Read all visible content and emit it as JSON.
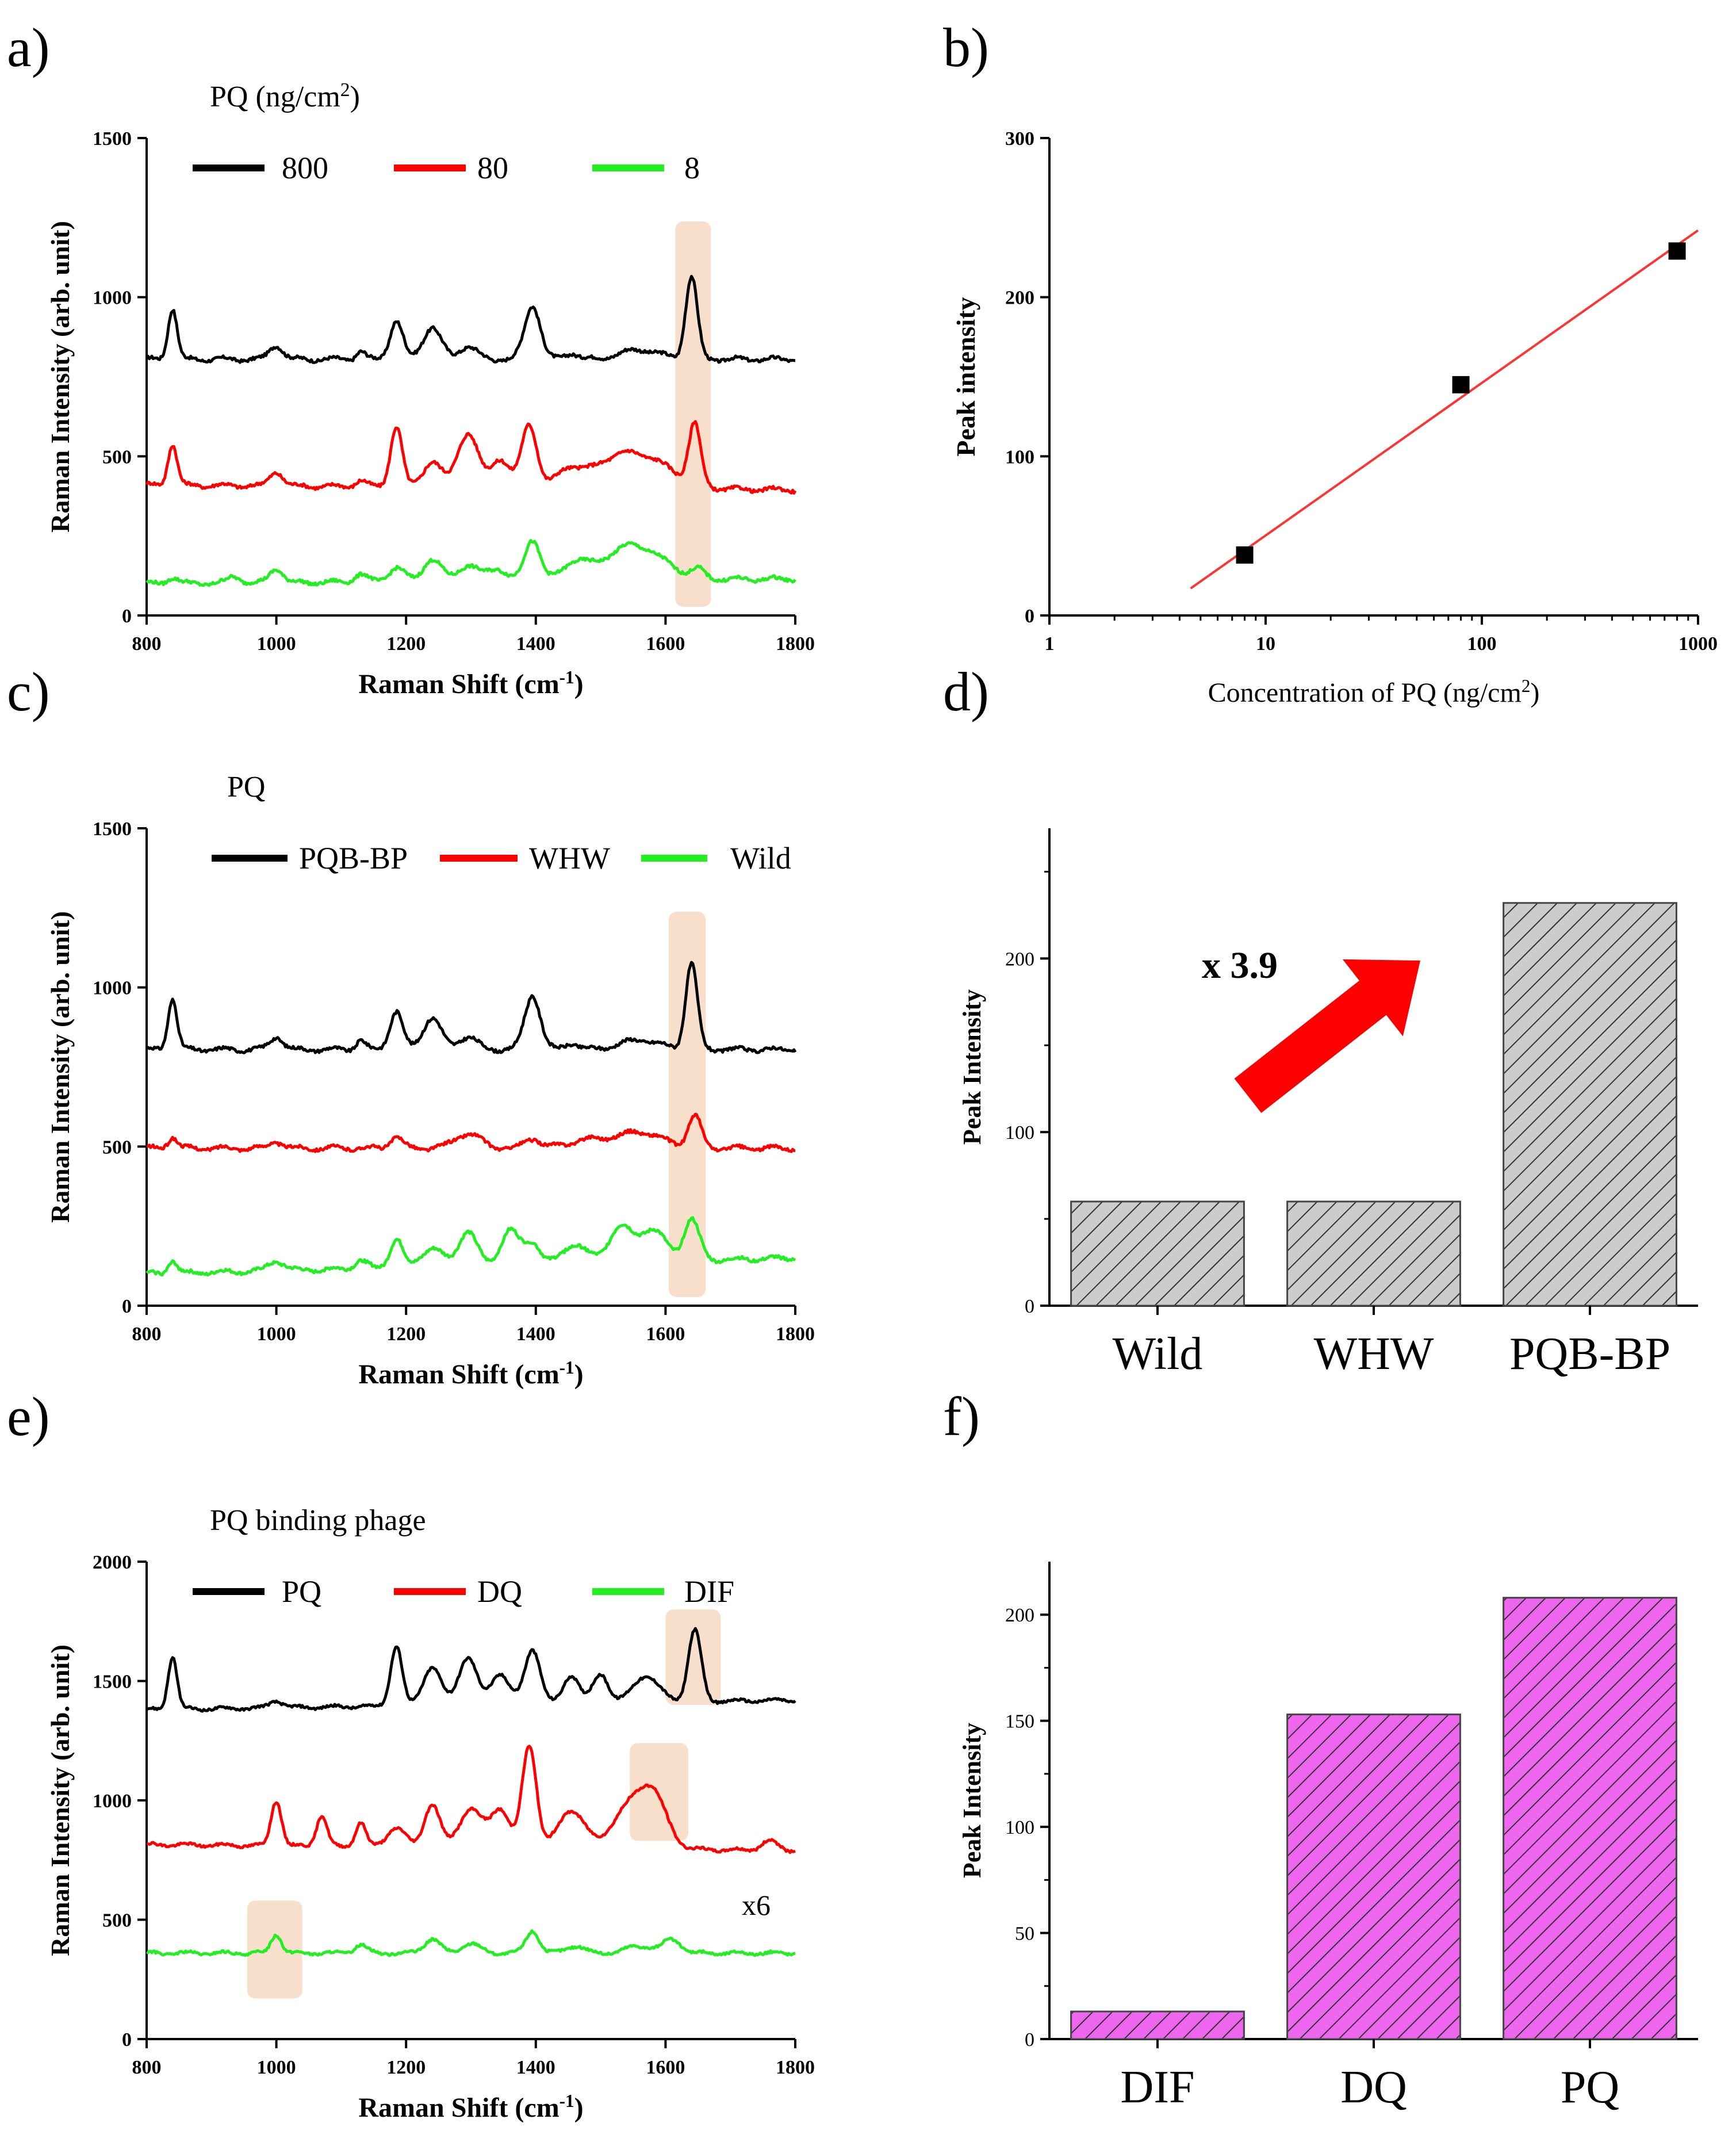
{
  "panels": {
    "a": {
      "label": "a)"
    },
    "b": {
      "label": "b)"
    },
    "c": {
      "label": "c)"
    },
    "d": {
      "label": "d)"
    },
    "e": {
      "label": "e)"
    },
    "f": {
      "label": "f)"
    }
  },
  "colors": {
    "black": "#000000",
    "red": "#ff0000",
    "green": "#22ee22",
    "highlight": "#f7d9c2",
    "gray_bar": "#cccccc",
    "magenta_bar": "#ee66ee",
    "fit": "#ff3333"
  },
  "chart_data": [
    {
      "id": "a",
      "type": "line",
      "legend_title": "PQ (ng/cm²)",
      "legend_title_base": "PQ (ng/cm",
      "legend_title_sup": "2",
      "legend_title_end": ")",
      "xlabel": "Raman Shift (cm⁻¹)",
      "xlabel_base": "Raman Shift (cm",
      "xlabel_sup": "-1",
      "xlabel_end": ")",
      "ylabel": "Raman Intensity (arb. unit)",
      "xlim": [
        800,
        1800
      ],
      "ylim": [
        0,
        1500
      ],
      "xticks": [
        "800",
        "1000",
        "1200",
        "1400",
        "1600",
        "1800"
      ],
      "yticks": [
        "0",
        "500",
        "1000",
        "1500"
      ],
      "highlight_x": [
        [
          1615,
          1670
        ]
      ],
      "series": [
        {
          "name": "800",
          "color": "black",
          "baseline": 805,
          "peaks": [
            [
              840,
              160,
              7
            ],
            [
              1000,
              45,
              10
            ],
            [
              1130,
              25,
              7
            ],
            [
              1185,
              120,
              10
            ],
            [
              1240,
              100,
              14
            ],
            [
              1295,
              40,
              14
            ],
            [
              1395,
              170,
              12
            ],
            [
              1455,
              20,
              10
            ],
            [
              1560,
              30,
              30
            ],
            [
              1640,
              260,
              9
            ]
          ]
        },
        {
          "name": "80",
          "color": "red",
          "baseline_start": 410,
          "baseline_end": 395,
          "peaks": [
            [
              840,
              130,
              7
            ],
            [
              1000,
              45,
              10
            ],
            [
              1130,
              20,
              8
            ],
            [
              1185,
              190,
              9
            ],
            [
              1240,
              80,
              14
            ],
            [
              1295,
              170,
              16
            ],
            [
              1345,
              90,
              14
            ],
            [
              1390,
              200,
              12
            ],
            [
              1450,
              50,
              18
            ],
            [
              1520,
              80,
              40
            ],
            [
              1580,
              70,
              40
            ],
            [
              1645,
              190,
              9
            ]
          ]
        },
        {
          "name": "8",
          "color": "green",
          "baseline_start": 100,
          "baseline_end": 115,
          "peaks": [
            [
              840,
              20,
              8
            ],
            [
              935,
              20,
              10
            ],
            [
              1000,
              45,
              10
            ],
            [
              1130,
              25,
              10
            ],
            [
              1185,
              45,
              12
            ],
            [
              1240,
              70,
              14
            ],
            [
              1295,
              50,
              16
            ],
            [
              1340,
              40,
              14
            ],
            [
              1395,
              130,
              12
            ],
            [
              1460,
              50,
              18
            ],
            [
              1550,
              110,
              45
            ],
            [
              1650,
              25,
              10
            ]
          ]
        }
      ]
    },
    {
      "id": "b",
      "type": "scatter",
      "xlabel": "Concentration of PQ (ng/cm²)",
      "xlabel_base": "Concentration of PQ (ng/cm",
      "xlabel_sup": "2",
      "xlabel_end": ")",
      "ylabel": "Peak intensity",
      "xscale": "log",
      "xlim": [
        1,
        1000
      ],
      "ylim": [
        0,
        300
      ],
      "xticks": [
        "1",
        "10",
        "100",
        "1000"
      ],
      "yticks": [
        "0",
        "100",
        "200",
        "300"
      ],
      "points": [
        {
          "x": 8,
          "y": 38
        },
        {
          "x": 80,
          "y": 145
        },
        {
          "x": 800,
          "y": 229
        }
      ],
      "fit_line": {
        "x0": 4.5,
        "y0": 17,
        "x1": 1000,
        "y1": 242
      }
    },
    {
      "id": "c",
      "type": "line",
      "legend_title": "PQ",
      "xlabel": "Raman Shift (cm⁻¹)",
      "xlabel_base": "Raman Shift (cm",
      "xlabel_sup": "-1",
      "xlabel_end": ")",
      "ylabel": "Raman Intensity (arb. unit)",
      "xlim": [
        800,
        1800
      ],
      "ylim": [
        0,
        1500
      ],
      "xticks": [
        "800",
        "1000",
        "1200",
        "1400",
        "1600",
        "1800"
      ],
      "yticks": [
        "0",
        "500",
        "1000",
        "1500"
      ],
      "highlight_x": [
        [
          1605,
          1662
        ]
      ],
      "series": [
        {
          "name": "PQB-BP",
          "color": "black",
          "baseline": 805,
          "peaks": [
            [
              840,
              160,
              7
            ],
            [
              1000,
              40,
              10
            ],
            [
              1130,
              30,
              7
            ],
            [
              1185,
              120,
              10
            ],
            [
              1240,
              100,
              14
            ],
            [
              1295,
              40,
              14
            ],
            [
              1395,
              170,
              12
            ],
            [
              1455,
              20,
              10
            ],
            [
              1560,
              30,
              30
            ],
            [
              1640,
              270,
              9
            ]
          ]
        },
        {
          "name": "WHW",
          "color": "red",
          "baseline": 495,
          "peaks": [
            [
              840,
              35,
              7
            ],
            [
              1000,
              20,
              10
            ],
            [
              1185,
              35,
              10
            ],
            [
              1295,
              45,
              20
            ],
            [
              1395,
              30,
              12
            ],
            [
              1480,
              25,
              30
            ],
            [
              1560,
              50,
              35
            ],
            [
              1645,
              100,
              10
            ]
          ]
        },
        {
          "name": "Wild",
          "color": "green",
          "baseline_start": 100,
          "baseline_end": 150,
          "peaks": [
            [
              840,
              40,
              7
            ],
            [
              1000,
              30,
              12
            ],
            [
              1130,
              25,
              10
            ],
            [
              1185,
              90,
              10
            ],
            [
              1240,
              60,
              16
            ],
            [
              1295,
              110,
              14
            ],
            [
              1360,
              110,
              14
            ],
            [
              1395,
              70,
              12
            ],
            [
              1460,
              60,
              18
            ],
            [
              1530,
              110,
              18
            ],
            [
              1580,
              100,
              20
            ],
            [
              1640,
              130,
              12
            ]
          ]
        }
      ]
    },
    {
      "id": "d",
      "type": "bar",
      "ylabel": "Peak Intensity",
      "categories": [
        "Wild",
        "WHW",
        "PQB-BP"
      ],
      "values": [
        60,
        60,
        232
      ],
      "ylim": [
        0,
        275
      ],
      "yticks": [
        "0",
        "100",
        "200"
      ],
      "fill": "gray_bar",
      "annotation": {
        "text": "x 3.9",
        "arrow": true
      }
    },
    {
      "id": "e",
      "type": "line",
      "legend_title": "PQ binding phage",
      "xlabel": "Raman Shift (cm⁻¹)",
      "xlabel_base": "Raman Shift (cm",
      "xlabel_sup": "-1",
      "xlabel_end": ")",
      "ylabel": "Raman Intensity (arb. unit)",
      "xlim": [
        800,
        1800
      ],
      "ylim": [
        0,
        2000
      ],
      "xticks": [
        "800",
        "1000",
        "1200",
        "1400",
        "1600",
        "1800"
      ],
      "yticks": [
        "0",
        "500",
        "1000",
        "1500",
        "2000"
      ],
      "highlight_x": [
        [
          1600,
          1685
        ],
        [
          1545,
          1635
        ],
        [
          955,
          1040
        ]
      ],
      "highlight_y": [
        [
          1400,
          1800
        ],
        [
          830,
          1240
        ],
        [
          170,
          580
        ]
      ],
      "annotation": "x6",
      "series": [
        {
          "name": "PQ",
          "color": "black",
          "baseline_start": 1380,
          "baseline_end": 1420,
          "peaks": [
            [
              840,
              220,
              7
            ],
            [
              1000,
              30,
              10
            ],
            [
              1185,
              250,
              9
            ],
            [
              1240,
              160,
              14
            ],
            [
              1295,
              200,
              14
            ],
            [
              1345,
              130,
              14
            ],
            [
              1395,
              230,
              12
            ],
            [
              1455,
              120,
              12
            ],
            [
              1500,
              120,
              12
            ],
            [
              1570,
              110,
              20
            ],
            [
              1645,
              300,
              10
            ]
          ]
        },
        {
          "name": "DQ",
          "color": "red",
          "baseline_start": 815,
          "baseline_end": 790,
          "peaks": [
            [
              1000,
              190,
              8
            ],
            [
              1070,
              130,
              8
            ],
            [
              1130,
              100,
              8
            ],
            [
              1185,
              80,
              14
            ],
            [
              1240,
              180,
              12
            ],
            [
              1300,
              160,
              18
            ],
            [
              1345,
              160,
              14
            ],
            [
              1390,
              430,
              11
            ],
            [
              1455,
              160,
              20
            ],
            [
              1540,
              150,
              25
            ],
            [
              1580,
              220,
              22
            ],
            [
              1760,
              40,
              12
            ]
          ]
        },
        {
          "name": "DIF",
          "color": "green",
          "baseline": 360,
          "peaks": [
            [
              1000,
              80,
              8
            ],
            [
              1130,
              35,
              10
            ],
            [
              1240,
              60,
              12
            ],
            [
              1300,
              40,
              14
            ],
            [
              1395,
              95,
              10
            ],
            [
              1460,
              30,
              14
            ],
            [
              1560,
              30,
              20
            ],
            [
              1610,
              55,
              14
            ]
          ]
        }
      ]
    },
    {
      "id": "f",
      "type": "bar",
      "ylabel": "Peak Intensity",
      "categories": [
        "DIF",
        "DQ",
        "PQ"
      ],
      "values": [
        13,
        153,
        208
      ],
      "ylim": [
        0,
        225
      ],
      "yticks": [
        "0",
        "50",
        "100",
        "150",
        "200"
      ],
      "fill": "magenta_bar"
    }
  ]
}
